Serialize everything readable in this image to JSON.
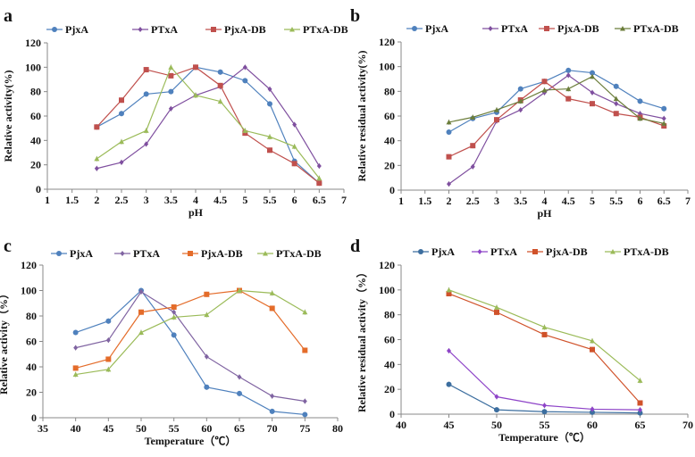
{
  "chart_data": [
    {
      "panel_label": "a",
      "type": "line",
      "xlabel": "pH",
      "ylabel": "Relative activity(%)",
      "xlim": [
        1,
        7
      ],
      "ylim": [
        0,
        120
      ],
      "xticks": [
        "1",
        "1.5",
        "2",
        "2.5",
        "3",
        "3.5",
        "4",
        "4.5",
        "5",
        "5.5",
        "6",
        "6.5",
        "7"
      ],
      "yticks": [
        "0",
        "20",
        "40",
        "60",
        "80",
        "100",
        "120"
      ],
      "legend": "top",
      "grid": false,
      "x": [
        2,
        2.5,
        3,
        3.5,
        4,
        4.5,
        5,
        5.5,
        6,
        6.5
      ],
      "series": [
        {
          "name": "PjxA",
          "color": "#4f81bd",
          "marker": "circle",
          "values": [
            51,
            62,
            78,
            80,
            100,
            96,
            89,
            70,
            23,
            5
          ]
        },
        {
          "name": "PTxA",
          "color": "#7f4f9f",
          "marker": "diamond",
          "values": [
            17,
            22,
            37,
            66,
            77,
            84,
            100,
            82,
            53,
            19
          ]
        },
        {
          "name": "PjxA-DB",
          "color": "#c0504d",
          "marker": "square",
          "values": [
            51,
            73,
            98,
            93,
            100,
            85,
            46,
            32,
            21,
            5
          ]
        },
        {
          "name": "PTxA-DB",
          "color": "#9bbb59",
          "marker": "triangle",
          "values": [
            25,
            39,
            48,
            100,
            77,
            72,
            48,
            43,
            35,
            9
          ]
        }
      ]
    },
    {
      "panel_label": "b",
      "type": "line",
      "xlabel": "pH",
      "ylabel": "Relative residual activity(%)",
      "xlim": [
        1,
        7
      ],
      "ylim": [
        0,
        120
      ],
      "xticks": [
        "1",
        "1.5",
        "2",
        "2.5",
        "3",
        "3.5",
        "4",
        "4.5",
        "5",
        "5.5",
        "6",
        "6.5",
        "7"
      ],
      "yticks": [
        "0",
        "20",
        "40",
        "60",
        "80",
        "100",
        "120"
      ],
      "legend": "top",
      "grid": false,
      "x": [
        2,
        2.5,
        3,
        3.5,
        4,
        4.5,
        5,
        5.5,
        6,
        6.5
      ],
      "series": [
        {
          "name": "PjxA",
          "color": "#4f81bd",
          "marker": "circle",
          "values": [
            47,
            58,
            63,
            82,
            88,
            97,
            95,
            84,
            72,
            66
          ]
        },
        {
          "name": "PTxA",
          "color": "#7f4f9f",
          "marker": "diamond",
          "values": [
            5,
            19,
            56,
            65,
            79,
            93,
            79,
            70,
            62,
            58
          ]
        },
        {
          "name": "PjxA-DB",
          "color": "#c0504d",
          "marker": "square",
          "values": [
            27,
            36,
            57,
            73,
            88,
            74,
            70,
            62,
            59,
            52
          ]
        },
        {
          "name": "PTxA-DB",
          "color": "#6b7d3a",
          "marker": "triangle",
          "values": [
            55,
            59,
            65,
            72,
            81,
            82,
            92,
            74,
            58,
            54
          ]
        }
      ]
    },
    {
      "panel_label": "c",
      "type": "line",
      "xlabel": "Temperature（℃）",
      "ylabel": "Relative activity（%）",
      "xlim": [
        35,
        80
      ],
      "ylim": [
        0,
        120
      ],
      "xticks": [
        "35",
        "40",
        "45",
        "50",
        "55",
        "60",
        "65",
        "70",
        "75",
        "80"
      ],
      "yticks": [
        "0",
        "20",
        "40",
        "60",
        "80",
        "100",
        "120"
      ],
      "legend": "top",
      "grid": false,
      "x": [
        40,
        45,
        50,
        55,
        60,
        65,
        70,
        75
      ],
      "series": [
        {
          "name": "PjxA",
          "color": "#4f81bd",
          "marker": "circle",
          "values": [
            67,
            76,
            100,
            65,
            24,
            19,
            5,
            2.5
          ]
        },
        {
          "name": "PTxA",
          "color": "#8064a2",
          "marker": "diamond",
          "values": [
            55,
            61,
            99,
            83,
            48,
            32,
            17,
            13
          ]
        },
        {
          "name": "PjxA-DB",
          "color": "#e46c2a",
          "marker": "square",
          "values": [
            39,
            46,
            83,
            87,
            97,
            100,
            86,
            53
          ]
        },
        {
          "name": "PTxA-DB",
          "color": "#9bbb59",
          "marker": "triangle",
          "values": [
            34,
            38,
            67,
            79,
            81,
            100,
            98,
            83
          ]
        }
      ]
    },
    {
      "panel_label": "d",
      "type": "line",
      "xlabel": "Temperature（℃）",
      "ylabel": "Relative residual activity（%）",
      "xlim": [
        40,
        70
      ],
      "ylim": [
        0,
        120
      ],
      "xticks": [
        "40",
        "45",
        "50",
        "55",
        "60",
        "65",
        "70"
      ],
      "yticks": [
        "0",
        "20",
        "40",
        "60",
        "80",
        "100",
        "120"
      ],
      "legend": "top",
      "grid": false,
      "x": [
        45,
        50,
        55,
        60,
        65
      ],
      "series": [
        {
          "name": "PjxA",
          "color": "#3c6e9f",
          "marker": "circle",
          "values": [
            24,
            3.5,
            2,
            1.5,
            1
          ]
        },
        {
          "name": "PTxA",
          "color": "#8e44c8",
          "marker": "diamond",
          "values": [
            51,
            14,
            7,
            4,
            3.5
          ]
        },
        {
          "name": "PjxA-DB",
          "color": "#d0522a",
          "marker": "square",
          "values": [
            97,
            82,
            64,
            52,
            9
          ]
        },
        {
          "name": "PTxA-DB",
          "color": "#9bbb59",
          "marker": "triangle",
          "values": [
            100,
            86,
            70,
            59,
            27
          ]
        }
      ]
    }
  ]
}
